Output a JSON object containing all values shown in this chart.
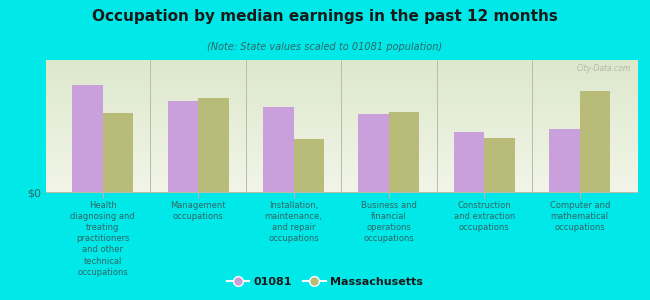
{
  "title": "Occupation by median earnings in the past 12 months",
  "subtitle": "(Note: State values scaled to 01081 population)",
  "background_color": "#00e8e8",
  "chart_bg_top": "#dde8cc",
  "chart_bg_bottom": "#f2f5e8",
  "bar_color_01081": "#c9a0dc",
  "bar_color_mass": "#b8bc78",
  "categories": [
    "Health\ndiagnosing and\ntreating\npractitioners\nand other\ntechnical\noccupations",
    "Management\noccupations",
    "Installation,\nmaintenance,\nand repair\noccupations",
    "Business and\nfinancial\noperations\noccupations",
    "Construction\nand extraction\noccupations",
    "Computer and\nmathematical\noccupations"
  ],
  "values_01081": [
    0.85,
    0.72,
    0.68,
    0.62,
    0.48,
    0.5
  ],
  "values_mass": [
    0.63,
    0.75,
    0.42,
    0.64,
    0.43,
    0.8
  ],
  "ylabel": "$0",
  "legend_01081": "01081",
  "legend_mass": "Massachusetts",
  "watermark": "City-Data.com",
  "title_color": "#1a1a1a",
  "subtitle_color": "#336666",
  "label_color": "#336666",
  "divider_color": "#bbbbaa",
  "spine_color": "#bbbbaa"
}
